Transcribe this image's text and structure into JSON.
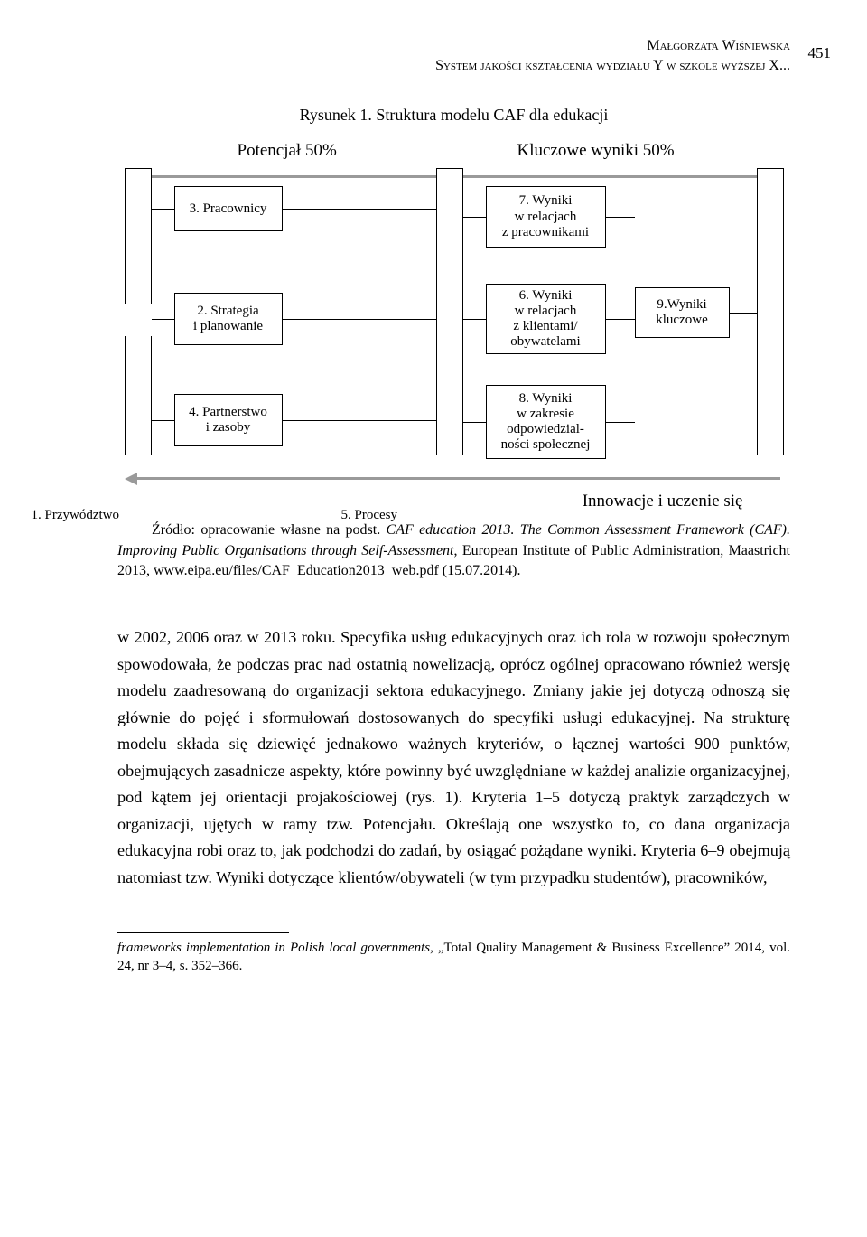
{
  "header": {
    "author": "Małgorzata Wiśniewska",
    "title": "System jakości kształcenia wydziału Y w szkole wyższej X...",
    "pagenum": "451"
  },
  "figure": {
    "caption": "Rysunek 1. Struktura modelu CAF dla edukacji",
    "col_left": "Potencjał 50%",
    "col_right": "Kluczowe wyniki 50%",
    "feedback": "Innowacje i uczenie się",
    "boxes": {
      "b1": "1. Przywództwo",
      "b2": "2. Strategia\ni planowanie",
      "b3": "3. Pracownicy",
      "b4": "4. Partnerstwo\ni zasoby",
      "b5": "5. Procesy",
      "b6": "6. Wyniki\nw relacjach\nz klientami/\nobywatelami",
      "b7": "7. Wyniki\nw relacjach\nz pracownikami",
      "b8": "8. Wyniki\nw zakresie\nodpowiedzial-\nności społecznej",
      "b9": "9.Wyniki\nkluczowe"
    },
    "style": {
      "box_border": "#000000",
      "box_bg": "#ffffff",
      "arrow_color": "#9a9a9a",
      "font_size_box": 15,
      "font_size_label": 19
    }
  },
  "source": {
    "line1_prefix": "Źródło: opracowanie własne na podst. ",
    "line1_ital1": "CAF education 2013. The Common Assessment Framework (CAF). Improving Public Organisations through Self-Assessment",
    "line1_rest": ", European Institute of Public Administration, Maastricht 2013, www.eipa.eu/files/CAF_Education2013_web.pdf (15.07.2014)."
  },
  "body": {
    "text": "w 2002, 2006 oraz w 2013 roku. Specyfika usług edukacyjnych oraz ich rola w rozwoju społecznym spowodowała, że podczas prac nad ostatnią nowelizacją, oprócz ogólnej opracowano również wersję modelu zaadresowaną do organizacji sektora edukacyjnego. Zmiany jakie jej dotyczą odnoszą się głównie do pojęć i sformułowań dostosowanych do specyfiki usługi edukacyjnej. Na strukturę modelu składa się dziewięć jednakowo ważnych kryteriów, o łącznej wartości 900 punktów, obejmujących zasadnicze aspekty, które powinny być uwzględniane w każdej analizie organizacyjnej, pod kątem jej orientacji projakościowej (rys. 1). Kryteria 1–5 dotyczą praktyk zarządczych w organizacji, ujętych w ramy tzw. Potencjału. Określają one wszystko to, co dana organizacja edukacyjna robi oraz to, jak podchodzi do zadań, by osiągać pożądane wyniki. Kryteria 6–9 obejmują natomiast tzw. Wyniki dotyczące klientów/obywateli (w tym przypadku studentów), pracowników,"
  },
  "footnote": {
    "ital": "frameworks implementation in Polish local governments",
    "rest": ", „Total Quality Management & Business Excellence” 2014, vol. 24, nr 3–4, s. 352–366."
  }
}
